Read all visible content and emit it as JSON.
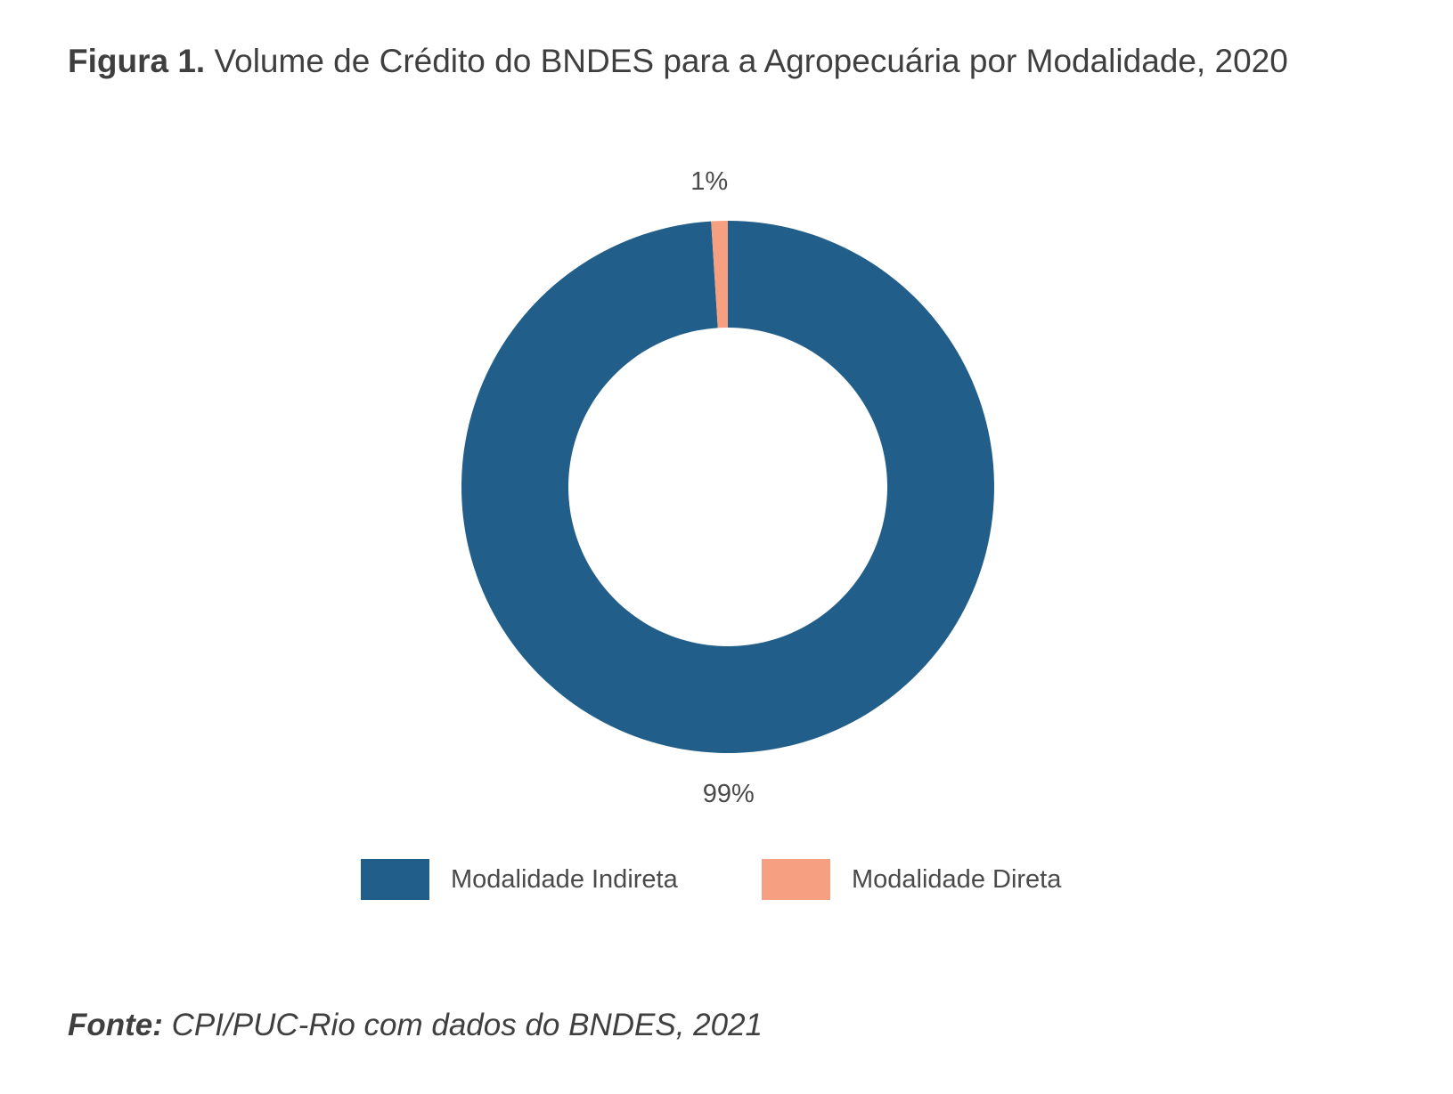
{
  "title": {
    "label": "Figura 1.",
    "text": "Volume de Crédito do BNDES para a Agropecuária por Modalidade, 2020"
  },
  "chart_data": {
    "type": "pie",
    "variant": "donut",
    "title": "Volume de Crédito do BNDES para a Agropecuária por Modalidade, 2020",
    "categories": [
      "Modalidade Indireta",
      "Modalidade Direta"
    ],
    "values": [
      99,
      1
    ],
    "labels": [
      "99%",
      "1%"
    ],
    "colors": [
      "#215e8a",
      "#f6a081"
    ],
    "legend_position": "bottom"
  },
  "legend": {
    "items": [
      {
        "label": "Modalidade Indireta",
        "color": "#215e8a"
      },
      {
        "label": "Modalidade Direta",
        "color": "#f6a081"
      }
    ]
  },
  "source": {
    "label": "Fonte:",
    "text": "CPI/PUC-Rio com dados do BNDES, 2021"
  }
}
